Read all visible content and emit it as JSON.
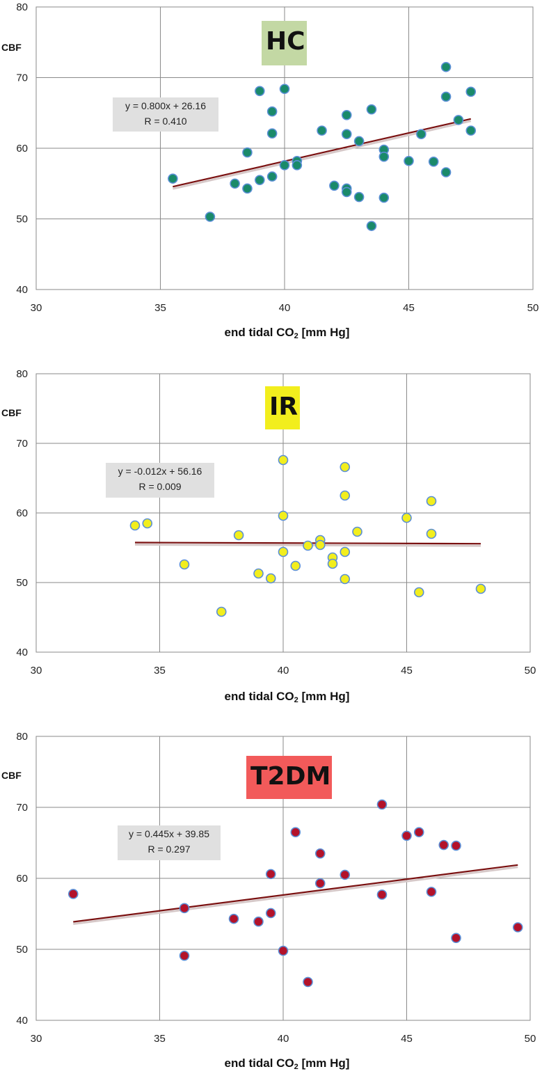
{
  "chart_data": [
    {
      "type": "scatter",
      "title": "HC",
      "title_bg": "#c3d8a4",
      "ylabel": "CBF",
      "xlabel_main": "end tidal CO",
      "xlabel_sub": "2",
      "xlabel_tail": " [mm Hg]",
      "xlim": [
        30,
        50
      ],
      "ylim": [
        40,
        80
      ],
      "xticks": [
        "30",
        "35",
        "40",
        "45",
        "50"
      ],
      "yticks": [
        "40",
        "50",
        "60",
        "70",
        "80"
      ],
      "grid": true,
      "marker_color": "#1a8a6a",
      "equation": "y = 0.800x + 26.16",
      "r_text": "R = 0.410",
      "fit": {
        "x": [
          35.5,
          47.5
        ],
        "y": [
          54.56,
          64.16
        ]
      },
      "x": [
        35.5,
        37.0,
        38.0,
        38.5,
        38.5,
        39.0,
        39.0,
        39.5,
        39.5,
        39.5,
        40.0,
        40.0,
        40.5,
        40.5,
        41.5,
        42.0,
        42.5,
        42.5,
        42.5,
        42.5,
        43.0,
        43.0,
        43.5,
        43.5,
        44.0,
        44.0,
        44.0,
        45.0,
        45.5,
        46.0,
        46.5,
        46.5,
        46.5,
        47.0,
        47.5,
        47.5
      ],
      "y": [
        55.7,
        50.3,
        55.0,
        59.4,
        54.3,
        68.1,
        55.5,
        65.2,
        62.1,
        56.0,
        68.4,
        57.6,
        58.2,
        57.6,
        62.5,
        54.7,
        64.7,
        62.0,
        54.3,
        53.8,
        61.0,
        53.1,
        65.5,
        49.0,
        59.8,
        58.8,
        53.0,
        58.2,
        62.0,
        58.1,
        71.5,
        67.3,
        56.6,
        64.0,
        68.0,
        62.5
      ]
    },
    {
      "type": "scatter",
      "title": "IR",
      "title_bg": "#f2ee1d",
      "ylabel": "CBF",
      "xlabel_main": "end tidal CO",
      "xlabel_sub": "2",
      "xlabel_tail": " [mm Hg]",
      "xlim": [
        30,
        50
      ],
      "ylim": [
        40,
        80
      ],
      "xticks": [
        "30",
        "35",
        "40",
        "45",
        "50"
      ],
      "yticks": [
        "40",
        "50",
        "60",
        "70",
        "80"
      ],
      "grid": true,
      "marker_color": "#f2ee1d",
      "equation": "y = -0.012x + 56.16",
      "r_text": "R = 0.009",
      "fit": {
        "x": [
          34.0,
          48.0
        ],
        "y": [
          55.75,
          55.58
        ]
      },
      "x": [
        34.0,
        34.5,
        36.0,
        37.5,
        38.2,
        39.0,
        39.5,
        40.0,
        40.0,
        40.0,
        40.5,
        41.0,
        41.5,
        41.5,
        42.0,
        42.0,
        42.5,
        42.5,
        42.5,
        42.5,
        43.0,
        45.0,
        45.5,
        46.0,
        46.0,
        48.0
      ],
      "y": [
        58.2,
        58.5,
        52.6,
        45.8,
        56.8,
        51.3,
        50.6,
        67.6,
        59.6,
        54.4,
        52.4,
        55.3,
        56.1,
        55.4,
        53.6,
        52.7,
        66.6,
        62.5,
        54.4,
        50.5,
        57.3,
        59.3,
        48.6,
        61.7,
        57.0,
        49.1
      ]
    },
    {
      "type": "scatter",
      "title": "T2DM",
      "title_bg": "#f25a5a",
      "ylabel": "CBF",
      "xlabel_main": "end tidal CO",
      "xlabel_sub": "2",
      "xlabel_tail": " [mm Hg]",
      "xlim": [
        30,
        50
      ],
      "ylim": [
        40,
        80
      ],
      "xticks": [
        "30",
        "35",
        "40",
        "45",
        "50"
      ],
      "yticks": [
        "40",
        "50",
        "60",
        "70",
        "80"
      ],
      "grid": true,
      "marker_color": "#b3122a",
      "equation": "y = 0.445x + 39.85",
      "r_text": "R = 0.297",
      "fit": {
        "x": [
          31.5,
          49.5
        ],
        "y": [
          53.87,
          61.88
        ]
      },
      "x": [
        31.5,
        36.0,
        36.0,
        38.0,
        39.0,
        39.5,
        39.5,
        40.0,
        40.5,
        41.0,
        41.5,
        41.5,
        42.5,
        44.0,
        44.0,
        45.0,
        45.5,
        46.0,
        46.5,
        47.0,
        47.0,
        49.5
      ],
      "y": [
        57.8,
        55.8,
        49.1,
        54.3,
        53.9,
        60.6,
        55.1,
        49.8,
        66.5,
        45.4,
        63.5,
        59.3,
        60.5,
        70.4,
        57.7,
        66.0,
        66.5,
        58.1,
        64.7,
        64.6,
        51.6,
        53.1
      ]
    }
  ]
}
